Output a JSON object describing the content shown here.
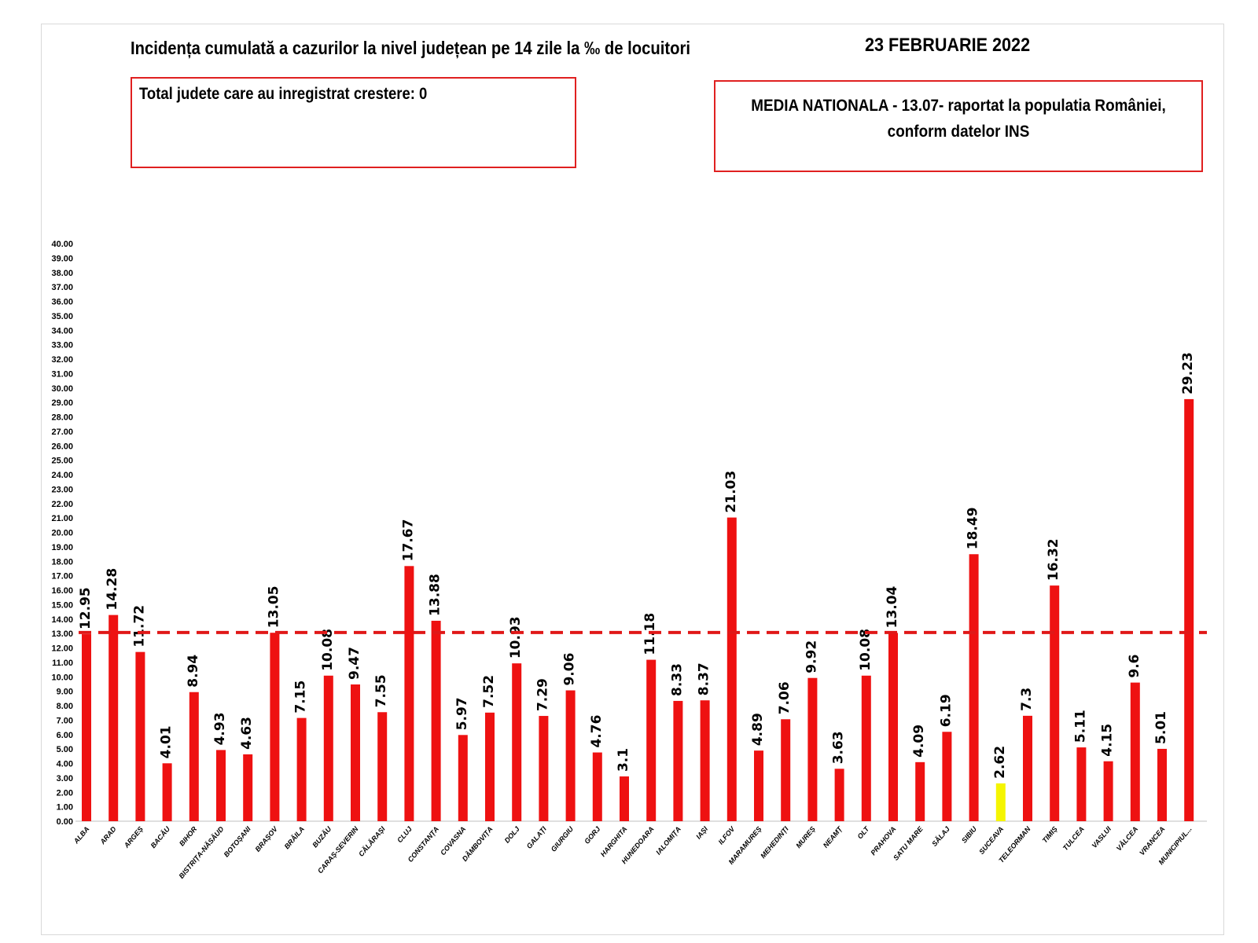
{
  "header": {
    "title": "Incidența cumulată a cazurilor la nivel județean pe 14 zile la ‰ de locuitori",
    "date": "23 FEBRUARIE 2022"
  },
  "info_left": {
    "text": "Total judete care au inregistrat crestere: 0"
  },
  "info_right": {
    "line1": "MEDIA NATIONALA - 13.07-  raportat la populatia României,",
    "line2": "conform datelor INS"
  },
  "colors": {
    "bar": "#ee1111",
    "highlight_bar": "#f5f500",
    "reference_line": "#e01818",
    "box_border": "#e02020"
  },
  "chart_data": {
    "type": "bar",
    "title": "Incidența cumulată a cazurilor la nivel județean pe 14 zile la ‰ de locuitori",
    "xlabel": "",
    "ylabel": "",
    "ylim": [
      0,
      40
    ],
    "ytick_step": 1,
    "grid": false,
    "reference_line": {
      "value": 13.07,
      "style": "dashed"
    },
    "highlight": [
      "SUCEAVA"
    ],
    "categories": [
      "ALBA",
      "ARAD",
      "ARGEȘ",
      "BACĂU",
      "BIHOR",
      "BISTRIȚA-NĂSĂUD",
      "BOTOȘANI",
      "BRAȘOV",
      "BRĂILA",
      "BUZĂU",
      "CARAȘ-SEVERIN",
      "CĂLĂRAȘI",
      "CLUJ",
      "CONSTANȚA",
      "COVASNA",
      "DÂMBOVIȚA",
      "DOLJ",
      "GALAȚI",
      "GIURGIU",
      "GORJ",
      "HARGHITA",
      "HUNEDOARA",
      "IALOMIȚA",
      "IAȘI",
      "ILFOV",
      "MARAMUREȘ",
      "MEHEDINȚI",
      "MUREȘ",
      "NEAMȚ",
      "OLT",
      "PRAHOVA",
      "SATU MARE",
      "SĂLAJ",
      "SIBIU",
      "SUCEAVA",
      "TELEORMAN",
      "TIMIȘ",
      "TULCEA",
      "VASLUI",
      "VÂLCEA",
      "VRANCEA",
      "MUNICIPIUL..."
    ],
    "values": [
      12.95,
      14.28,
      11.72,
      4.01,
      8.94,
      4.93,
      4.63,
      13.05,
      7.15,
      10.08,
      9.47,
      7.55,
      17.67,
      13.88,
      5.97,
      7.52,
      10.93,
      7.29,
      9.06,
      4.76,
      3.1,
      11.18,
      8.33,
      8.37,
      21.03,
      4.89,
      7.06,
      9.92,
      3.63,
      10.08,
      13.04,
      4.09,
      6.19,
      18.49,
      2.62,
      7.3,
      16.32,
      5.11,
      4.15,
      9.6,
      5.01,
      29.23
    ],
    "value_labels": [
      "12.95",
      "14.28",
      "11.72",
      "4.01",
      "8.94",
      "4.93",
      "4.63",
      "13.05",
      "7.15",
      "10.08",
      "9.47",
      "7.55",
      "17.67",
      "13.88",
      "5.97",
      "7.52",
      "10.93",
      "7.29",
      "9.06",
      "4.76",
      "3.1",
      "11.18",
      "8.33",
      "8.37",
      "21.03",
      "4.89",
      "7.06",
      "9.92",
      "3.63",
      "10.08",
      "13.04",
      "4.09",
      "6.19",
      "18.49",
      "2.62",
      "7.3",
      "16.32",
      "5.11",
      "4.15",
      "9.6",
      "5.01",
      "29.23"
    ]
  }
}
